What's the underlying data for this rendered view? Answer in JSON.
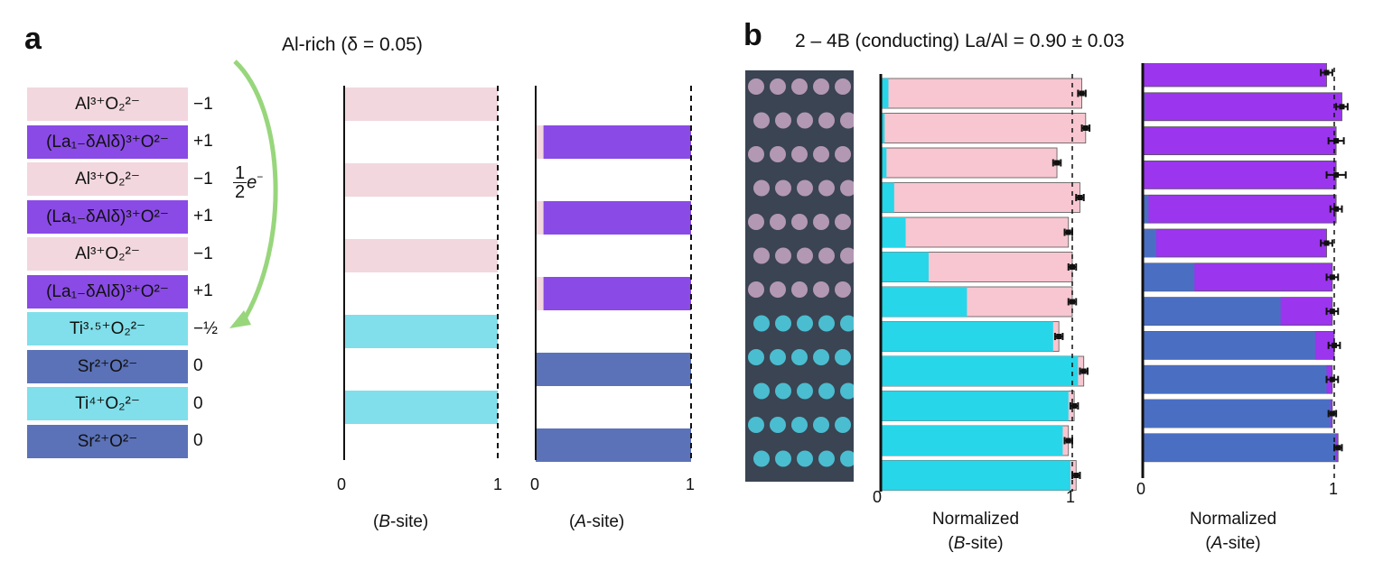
{
  "panel_a": {
    "letter": "a",
    "title": "Al-rich (δ = 0.05)",
    "transfer_label": "1/2 e⁻",
    "layers": [
      {
        "label": "Al³⁺O₂²⁻",
        "charge": "−1",
        "color": "#f2d7de"
      },
      {
        "label": "(La₁₋δAlδ)³⁺O²⁻",
        "charge": "+1",
        "color": "#8a4ae6"
      },
      {
        "label": "Al³⁺O₂²⁻",
        "charge": "−1",
        "color": "#f2d7de"
      },
      {
        "label": "(La₁₋δAlδ)³⁺O²⁻",
        "charge": "+1",
        "color": "#8a4ae6"
      },
      {
        "label": "Al³⁺O₂²⁻",
        "charge": "−1",
        "color": "#f2d7de"
      },
      {
        "label": "(La₁₋δAlδ)³⁺O²⁻",
        "charge": "+1",
        "color": "#8a4ae6"
      },
      {
        "label": "Ti³·⁵⁺O₂²⁻",
        "charge": "−½",
        "color": "#80dfea"
      },
      {
        "label": "Sr²⁺O²⁻",
        "charge": "0",
        "color": "#5b72b8"
      },
      {
        "label": "Ti⁴⁺O₂²⁻",
        "charge": "0",
        "color": "#80dfea"
      },
      {
        "label": "Sr²⁺O²⁻",
        "charge": "0",
        "color": "#5b72b8"
      }
    ],
    "bsite_label": "(B-site)",
    "asite_label": "(A-site)",
    "tick0": "0",
    "tick1": "1"
  },
  "panel_b": {
    "letter": "b",
    "title": "2 – 4B (conducting) La/Al = 0.90 ± 0.03",
    "bsite_label_1": "Normalized",
    "bsite_label_2": "(B-site)",
    "asite_label_1": "Normalized",
    "asite_label_2": "(A-site)",
    "tick0": "0",
    "tick1": "1"
  },
  "colors": {
    "al": "#f7c6d0",
    "la": "#9b35ee",
    "ti": "#27d6e8",
    "sr": "#4a6fc2",
    "arrow": "#98d67c"
  },
  "chart_data": [
    {
      "type": "bar",
      "title": "Al-rich (δ = 0.05)",
      "xlabel": "(B-site)",
      "orientation": "horizontal-stacked",
      "xlim": [
        0,
        1
      ],
      "rows": [
        {
          "Al": 1.0,
          "Ti": 0.0
        },
        {
          "Al": 0.0,
          "Ti": 0.0
        },
        {
          "Al": 1.0,
          "Ti": 0.0
        },
        {
          "Al": 0.0,
          "Ti": 0.0
        },
        {
          "Al": 1.0,
          "Ti": 0.0
        },
        {
          "Al": 0.0,
          "Ti": 0.0
        },
        {
          "Al": 0.0,
          "Ti": 1.0
        },
        {
          "Al": 0.0,
          "Ti": 0.0
        },
        {
          "Al": 0.0,
          "Ti": 1.0
        },
        {
          "Al": 0.0,
          "Ti": 0.0
        }
      ]
    },
    {
      "type": "bar",
      "xlabel": "(A-site)",
      "orientation": "horizontal-stacked",
      "xlim": [
        0,
        1
      ],
      "rows": [
        {
          "Al": 0.0,
          "La": 0.0,
          "Sr": 0.0
        },
        {
          "Al": 0.05,
          "La": 0.95,
          "Sr": 0.0
        },
        {
          "Al": 0.0,
          "La": 0.0,
          "Sr": 0.0
        },
        {
          "Al": 0.05,
          "La": 0.95,
          "Sr": 0.0
        },
        {
          "Al": 0.0,
          "La": 0.0,
          "Sr": 0.0
        },
        {
          "Al": 0.05,
          "La": 0.95,
          "Sr": 0.0
        },
        {
          "Al": 0.0,
          "La": 0.0,
          "Sr": 0.0
        },
        {
          "Al": 0.0,
          "La": 0.0,
          "Sr": 1.0
        },
        {
          "Al": 0.0,
          "La": 0.0,
          "Sr": 0.0
        },
        {
          "Al": 0.0,
          "La": 0.0,
          "Sr": 1.0
        }
      ]
    },
    {
      "type": "bar",
      "title": "2 – 4B (conducting) La/Al = 0.90 ± 0.03",
      "xlabel": "Normalized (B-site)",
      "orientation": "horizontal-stacked",
      "xlim": [
        0,
        1.1
      ],
      "series_names": [
        "Ti",
        "Al"
      ],
      "rows": [
        {
          "Ti": 0.04,
          "total": 1.05,
          "err": 0.02
        },
        {
          "Ti": 0.02,
          "total": 1.07,
          "err": 0.02
        },
        {
          "Ti": 0.03,
          "total": 0.92,
          "err": 0.02
        },
        {
          "Ti": 0.07,
          "total": 1.04,
          "err": 0.02
        },
        {
          "Ti": 0.13,
          "total": 0.98,
          "err": 0.02
        },
        {
          "Ti": 0.25,
          "total": 1.0,
          "err": 0.02
        },
        {
          "Ti": 0.45,
          "total": 1.0,
          "err": 0.02
        },
        {
          "Ti": 0.9,
          "total": 0.93,
          "err": 0.02
        },
        {
          "Ti": 1.03,
          "total": 1.06,
          "err": 0.02
        },
        {
          "Ti": 0.98,
          "total": 1.01,
          "err": 0.02
        },
        {
          "Ti": 0.95,
          "total": 0.98,
          "err": 0.02
        },
        {
          "Ti": 0.99,
          "total": 1.02,
          "err": 0.02
        }
      ]
    },
    {
      "type": "bar",
      "xlabel": "Normalized (A-site)",
      "orientation": "horizontal-stacked",
      "xlim": [
        0,
        1.1
      ],
      "series_names": [
        "Sr",
        "La"
      ],
      "rows": [
        {
          "Sr": 0.0,
          "total": 0.96,
          "err": 0.03
        },
        {
          "Sr": 0.01,
          "total": 1.04,
          "err": 0.03
        },
        {
          "Sr": 0.0,
          "total": 1.01,
          "err": 0.04
        },
        {
          "Sr": 0.0,
          "total": 1.01,
          "err": 0.05
        },
        {
          "Sr": 0.03,
          "total": 1.01,
          "err": 0.03
        },
        {
          "Sr": 0.07,
          "total": 0.96,
          "err": 0.03
        },
        {
          "Sr": 0.27,
          "total": 0.99,
          "err": 0.03
        },
        {
          "Sr": 0.72,
          "total": 0.99,
          "err": 0.03
        },
        {
          "Sr": 0.9,
          "total": 1.0,
          "err": 0.03
        },
        {
          "Sr": 0.96,
          "total": 0.99,
          "err": 0.03
        },
        {
          "Sr": 0.98,
          "total": 0.99,
          "err": 0.02
        },
        {
          "Sr": 1.01,
          "total": 1.02,
          "err": 0.02
        }
      ]
    }
  ]
}
